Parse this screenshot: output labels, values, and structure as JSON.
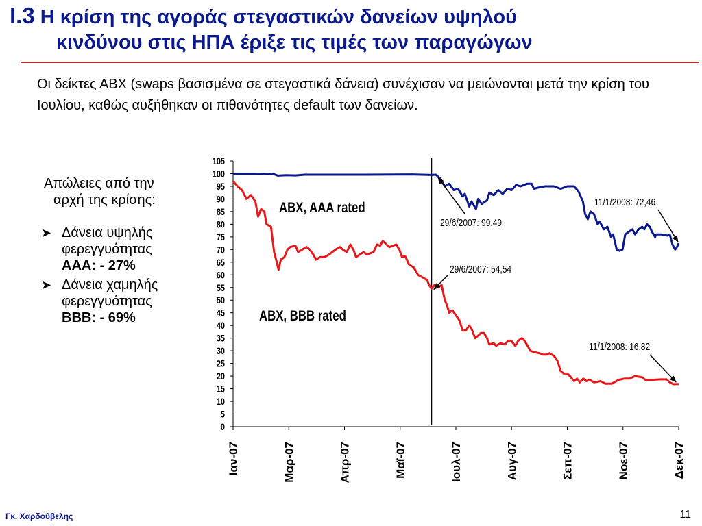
{
  "slide": {
    "title_num": "I.3",
    "title_line1": "Η κρίση της αγοράς στεγαστικών δανείων υψηλού",
    "title_line2": "κινδύνου στις ΗΠΑ έριξε τις τιμές των παραγώγων",
    "intro": "Οι δείκτες ΑΒΧ (swaps βασισμένα σε στεγαστικά δάνεια) συνέχισαν να μειώνονται μετά την κρίση του Ιουλίου, καθώς αυξήθηκαν οι πιθανότητες default των δανείων.",
    "author": "Γκ. Χαρδούβελης",
    "page_number": "11",
    "accent_color": "#0a1a8c",
    "rule_color": "#b5312b"
  },
  "bullets": {
    "lead_line1": "Απώλειες από την",
    "lead_line2": "αρχή της κρίσης:",
    "items": [
      {
        "text": "Δάνεια υψηλής φερεγγυότητας",
        "strong": "AAA: - 27%"
      },
      {
        "text": "Δάνεια χαμηλής φερεγγυότητας",
        "strong": "BBB: - 69%"
      }
    ]
  },
  "chart_data": {
    "type": "line",
    "xlabel": "",
    "ylabel": "",
    "ylim": [
      0,
      105
    ],
    "yticks": [
      0,
      5,
      10,
      15,
      20,
      25,
      30,
      35,
      40,
      45,
      50,
      55,
      60,
      65,
      70,
      75,
      80,
      85,
      90,
      95,
      100,
      105
    ],
    "x_tick_labels": [
      "Ιαν-07",
      "Μαρ-07",
      "Απρ-07",
      "Μαϊ-07",
      "Ιουλ-07",
      "Αυγ-07",
      "Σεπ-07",
      "Νοε-07",
      "Δεκ-07"
    ],
    "x_range": [
      0,
      100
    ],
    "x_tick_positions": [
      0,
      12.5,
      25,
      37.5,
      50,
      62.5,
      75,
      87.5,
      100
    ],
    "vertical_marker_x": 44.5,
    "series": [
      {
        "name": "ABX, AAA rated",
        "color": "#0a1a8c",
        "points": [
          [
            0,
            100
          ],
          [
            5,
            100
          ],
          [
            7,
            99.8
          ],
          [
            9,
            99.9
          ],
          [
            10,
            99.2
          ],
          [
            12,
            99.4
          ],
          [
            14,
            99.3
          ],
          [
            16,
            99.6
          ],
          [
            20,
            99.6
          ],
          [
            30,
            99.6
          ],
          [
            40,
            99.7
          ],
          [
            44.5,
            99.49
          ],
          [
            45.5,
            99.6
          ],
          [
            46.5,
            98
          ],
          [
            47.5,
            95
          ],
          [
            48.5,
            96
          ],
          [
            49.5,
            93.5
          ],
          [
            50.5,
            94
          ],
          [
            51.5,
            91
          ],
          [
            52,
            92
          ],
          [
            53,
            87
          ],
          [
            53.5,
            89
          ],
          [
            54.5,
            86
          ],
          [
            55,
            90
          ],
          [
            55.8,
            88
          ],
          [
            57,
            89.5
          ],
          [
            57.5,
            92.5
          ],
          [
            58.5,
            91.5
          ],
          [
            59.5,
            93.5
          ],
          [
            60.5,
            92
          ],
          [
            61.5,
            94
          ],
          [
            62.5,
            93.5
          ],
          [
            63.5,
            95.5
          ],
          [
            64.5,
            95
          ],
          [
            66,
            96
          ],
          [
            67,
            96
          ],
          [
            67.5,
            94
          ],
          [
            68.5,
            94.5
          ],
          [
            70,
            95
          ],
          [
            72,
            95
          ],
          [
            73.5,
            94
          ],
          [
            75,
            95
          ],
          [
            76.5,
            95
          ],
          [
            77.5,
            93
          ],
          [
            78,
            91
          ],
          [
            78.5,
            89
          ],
          [
            79,
            84
          ],
          [
            79.6,
            82
          ],
          [
            80.2,
            85
          ],
          [
            81,
            84
          ],
          [
            81.8,
            80
          ],
          [
            82.3,
            81
          ],
          [
            83.2,
            78
          ],
          [
            84,
            79
          ],
          [
            84.8,
            75
          ],
          [
            85.3,
            76
          ],
          [
            86.1,
            70
          ],
          [
            86.7,
            69.5
          ],
          [
            87.4,
            70
          ],
          [
            88,
            76
          ],
          [
            88.8,
            77
          ],
          [
            89.6,
            78
          ],
          [
            90.2,
            76
          ],
          [
            91,
            78
          ],
          [
            91.8,
            79
          ],
          [
            92.3,
            78
          ],
          [
            92.9,
            80
          ],
          [
            93.5,
            79
          ],
          [
            94,
            77
          ],
          [
            94.7,
            75
          ],
          [
            95,
            76
          ],
          [
            96,
            76
          ],
          [
            97.5,
            75.5
          ],
          [
            98,
            76
          ],
          [
            98.6,
            72
          ],
          [
            99.2,
            70
          ],
          [
            99.6,
            71
          ],
          [
            100,
            72.46
          ]
        ]
      },
      {
        "name": "ABX, BBB rated",
        "color": "#e8181a",
        "points": [
          [
            0,
            97
          ],
          [
            1,
            95
          ],
          [
            2,
            93.5
          ],
          [
            3,
            90
          ],
          [
            4,
            91.5
          ],
          [
            5,
            89
          ],
          [
            5.6,
            83
          ],
          [
            6.3,
            86
          ],
          [
            7,
            85
          ],
          [
            7.5,
            80
          ],
          [
            8.5,
            79
          ],
          [
            9.2,
            69
          ],
          [
            9.8,
            65
          ],
          [
            10.2,
            62
          ],
          [
            10.7,
            66
          ],
          [
            11.5,
            67
          ],
          [
            12.2,
            70
          ],
          [
            12.8,
            71
          ],
          [
            14,
            71.5
          ],
          [
            14.6,
            69
          ],
          [
            15.5,
            70
          ],
          [
            16.5,
            71
          ],
          [
            17.2,
            70
          ],
          [
            18,
            68
          ],
          [
            18.6,
            66
          ],
          [
            19.5,
            67
          ],
          [
            20.5,
            67
          ],
          [
            21.5,
            68
          ],
          [
            23,
            70
          ],
          [
            24,
            71
          ],
          [
            24.6,
            70
          ],
          [
            25.5,
            69
          ],
          [
            26.3,
            72
          ],
          [
            27,
            70
          ],
          [
            27.6,
            67
          ],
          [
            28.4,
            68
          ],
          [
            29.3,
            69
          ],
          [
            30,
            68
          ],
          [
            31.5,
            69
          ],
          [
            32.3,
            72
          ],
          [
            33,
            71.5
          ],
          [
            33.6,
            73.5
          ],
          [
            34.4,
            72
          ],
          [
            35.1,
            71
          ],
          [
            36.6,
            72
          ],
          [
            37.3,
            70
          ],
          [
            37.9,
            67
          ],
          [
            38.6,
            67.5
          ],
          [
            39.5,
            64
          ],
          [
            40.5,
            63
          ],
          [
            41.5,
            60
          ],
          [
            42.5,
            59
          ],
          [
            43.5,
            58
          ],
          [
            44,
            56
          ],
          [
            44.5,
            54.54
          ],
          [
            45.2,
            56
          ],
          [
            46,
            55
          ],
          [
            46.8,
            56
          ],
          [
            47.5,
            50
          ],
          [
            48,
            48
          ],
          [
            48.5,
            45
          ],
          [
            49.2,
            46
          ],
          [
            50,
            44
          ],
          [
            50.8,
            42
          ],
          [
            51.5,
            38
          ],
          [
            52.2,
            38
          ],
          [
            53,
            40
          ],
          [
            53.7,
            38
          ],
          [
            54.3,
            35
          ],
          [
            55,
            36
          ],
          [
            55.6,
            37
          ],
          [
            56.3,
            37
          ],
          [
            57,
            35
          ],
          [
            57.5,
            32.5
          ],
          [
            58.5,
            33
          ],
          [
            59,
            32
          ],
          [
            60,
            33
          ],
          [
            61,
            32.5
          ],
          [
            61.7,
            34
          ],
          [
            62.4,
            34
          ],
          [
            63.3,
            32
          ],
          [
            64,
            34
          ],
          [
            64.8,
            35
          ],
          [
            65.4,
            34
          ],
          [
            66.1,
            32
          ],
          [
            66.7,
            30
          ],
          [
            67.5,
            29.5
          ],
          [
            68.8,
            29
          ],
          [
            69.5,
            28.5
          ],
          [
            70.3,
            28.5
          ],
          [
            71,
            29
          ],
          [
            72,
            28
          ],
          [
            72.8,
            26
          ],
          [
            73.5,
            22
          ],
          [
            74.2,
            21
          ],
          [
            75,
            21
          ],
          [
            75.6,
            20
          ],
          [
            76.5,
            18
          ],
          [
            77.2,
            19
          ],
          [
            77.8,
            17.5
          ],
          [
            78.6,
            19
          ],
          [
            79.3,
            18
          ],
          [
            80,
            18.5
          ],
          [
            81,
            17.5
          ],
          [
            82.5,
            18
          ],
          [
            83.5,
            17
          ],
          [
            85,
            17
          ],
          [
            86.5,
            18.5
          ],
          [
            87.8,
            19
          ],
          [
            89,
            19
          ],
          [
            90.2,
            20
          ],
          [
            91.8,
            19.5
          ],
          [
            92.5,
            18.5
          ],
          [
            94,
            18.5
          ],
          [
            96,
            18.7
          ],
          [
            97.3,
            18.7
          ],
          [
            98,
            17.5
          ],
          [
            98.8,
            16.8
          ],
          [
            100,
            16.82
          ]
        ]
      }
    ],
    "annotations": [
      {
        "text": "ABX, AAA rated",
        "bold": true
      },
      {
        "text": "ABX, BBB rated",
        "bold": true
      },
      {
        "text": "29/6/2007: 99,49",
        "bold": false
      },
      {
        "text": "29/6/2007: 54,54",
        "bold": false
      },
      {
        "text": "11/1/2008: 72,46",
        "bold": false
      },
      {
        "text": "11/1/2008: 16,82",
        "bold": false
      }
    ]
  }
}
